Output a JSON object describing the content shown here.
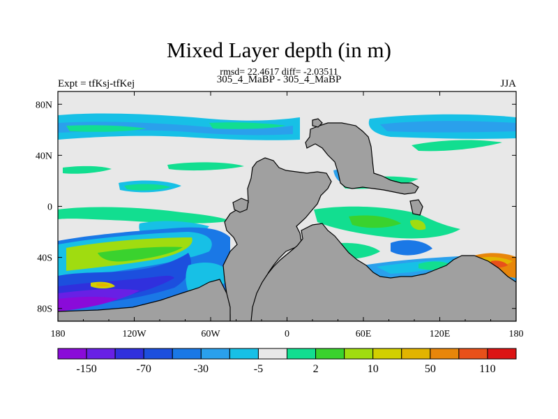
{
  "chart_data": {
    "type": "heatmap",
    "title": "Mixed Layer depth (in m)",
    "stats_line": "rmsd= 22.4617 diff= -2.03511",
    "subtitle": "305_4_MaBP - 305_4_MaBP",
    "left_label": "Expt = tfKsj-tfKej",
    "right_label": "JJA",
    "xlim": [
      -180,
      180
    ],
    "ylim": [
      -90,
      90
    ],
    "x_ticks": [
      {
        "value": -180,
        "label": "180"
      },
      {
        "value": -120,
        "label": "120W"
      },
      {
        "value": -60,
        "label": "60W"
      },
      {
        "value": 0,
        "label": "0"
      },
      {
        "value": 60,
        "label": "60E"
      },
      {
        "value": 120,
        "label": "120E"
      },
      {
        "value": 180,
        "label": "180"
      }
    ],
    "y_ticks": [
      {
        "value": 80,
        "label": "80N"
      },
      {
        "value": 40,
        "label": "40N"
      },
      {
        "value": 0,
        "label": "0"
      },
      {
        "value": -40,
        "label": "40S"
      },
      {
        "value": -80,
        "label": "80S"
      }
    ],
    "colorbar": {
      "colors": [
        "#8a0bd9",
        "#6820e5",
        "#3030dd",
        "#1c4fde",
        "#1a78e6",
        "#2aa0ec",
        "#17c0e6",
        "#e8e8e8",
        "#12de90",
        "#3ad22e",
        "#a0dc10",
        "#d2d000",
        "#e2b400",
        "#e8860a",
        "#e8501a",
        "#dc1414"
      ],
      "labels": [
        {
          "after_box": 1,
          "text": "-150"
        },
        {
          "after_box": 3,
          "text": "-70"
        },
        {
          "after_box": 5,
          "text": "-30"
        },
        {
          "after_box": 7,
          "text": "-5"
        },
        {
          "after_box": 9,
          "text": "2"
        },
        {
          "after_box": 11,
          "text": "10"
        },
        {
          "after_box": 13,
          "text": "50"
        },
        {
          "after_box": 15,
          "text": "110"
        }
      ]
    },
    "land_color": "#a0a0a0",
    "no_data_color": "#e8e8e8"
  }
}
